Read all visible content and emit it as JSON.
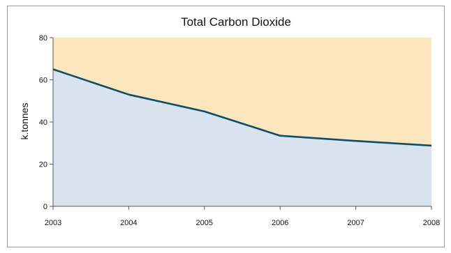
{
  "chart_data": {
    "type": "area",
    "title": "Total Carbon Dioxide",
    "xlabel": "",
    "ylabel": "k.tonnes",
    "x": [
      "2003",
      "2004",
      "2005",
      "2006",
      "2007",
      "2008"
    ],
    "series": [
      {
        "values": [
          65,
          53,
          45,
          33.5,
          31,
          28.8
        ]
      }
    ],
    "ylim": [
      0,
      80
    ],
    "yticks": [
      0,
      20,
      40,
      60,
      80
    ],
    "grid": false,
    "legend": "none",
    "colors": {
      "area_below": "#d9e3ee",
      "area_above": "#fbe6bd",
      "line": "#0f4d6e",
      "axis": "#555555"
    }
  }
}
